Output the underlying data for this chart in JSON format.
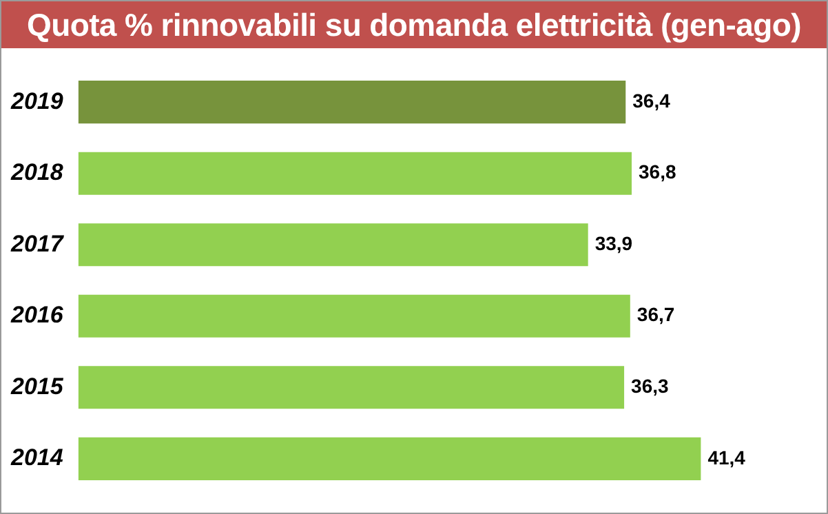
{
  "chart_data": {
    "type": "bar",
    "orientation": "horizontal",
    "title": "Quota % rinnovabili su domanda elettricità (gen-ago)",
    "categories": [
      "2019",
      "2018",
      "2017",
      "2016",
      "2015",
      "2014"
    ],
    "values": [
      36.4,
      36.8,
      33.9,
      36.7,
      36.3,
      41.4
    ],
    "colors": [
      "#77933c",
      "#92d050",
      "#92d050",
      "#92d050",
      "#92d050",
      "#92d050"
    ],
    "value_labels": [
      "36,4",
      "36,8",
      "33,9",
      "36,7",
      "36,3",
      "41,4"
    ],
    "legend": false
  }
}
